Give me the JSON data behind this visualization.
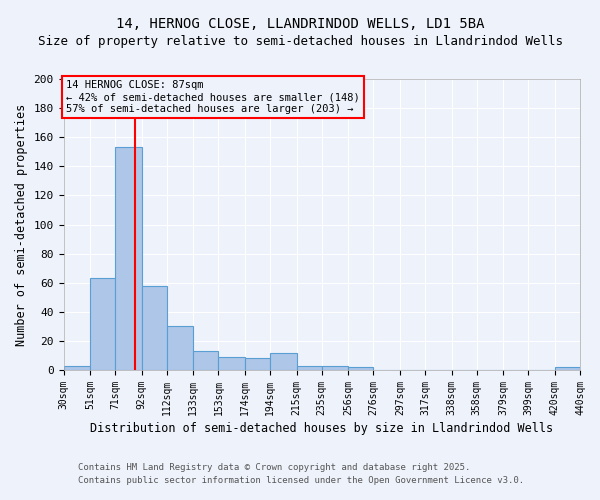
{
  "title": "14, HERNOG CLOSE, LLANDRINDOD WELLS, LD1 5BA",
  "subtitle": "Size of property relative to semi-detached houses in Llandrindod Wells",
  "xlabel": "Distribution of semi-detached houses by size in Llandrindod Wells",
  "ylabel": "Number of semi-detached properties",
  "footnote1": "Contains HM Land Registry data © Crown copyright and database right 2025.",
  "footnote2": "Contains public sector information licensed under the Open Government Licence v3.0.",
  "bin_edges": [
    30,
    51,
    71,
    92,
    112,
    133,
    153,
    174,
    194,
    215,
    235,
    256,
    276,
    297,
    317,
    338,
    358,
    379,
    399,
    420,
    440
  ],
  "bar_heights": [
    3,
    63,
    153,
    58,
    30,
    13,
    9,
    8,
    12,
    3,
    3,
    2,
    0,
    0,
    0,
    0,
    0,
    0,
    0,
    2
  ],
  "bar_color": "#aec6e8",
  "bar_edge_color": "#5a9fd4",
  "property_line_x": 87,
  "property_line_color": "red",
  "annotation_title": "14 HERNOG CLOSE: 87sqm",
  "annotation_line1": "← 42% of semi-detached houses are smaller (148)",
  "annotation_line2": "57% of semi-detached houses are larger (203) →",
  "annotation_box_color": "red",
  "ylim": [
    0,
    200
  ],
  "background_color": "#eef2fb",
  "grid_color": "white",
  "title_fontsize": 10,
  "subtitle_fontsize": 9,
  "axis_label_fontsize": 8.5,
  "tick_fontsize": 7,
  "annotation_fontsize": 7.5,
  "footnote_fontsize": 6.5
}
